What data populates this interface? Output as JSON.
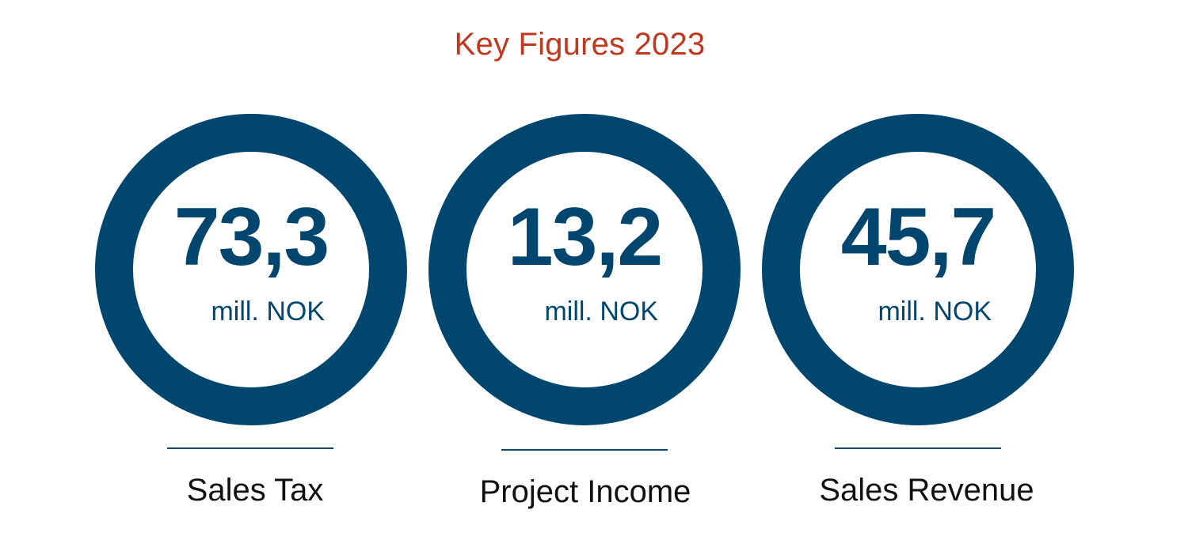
{
  "title": "Key Figures 2023",
  "colors": {
    "title": "#c0381f",
    "ring": "#00466e",
    "value": "#00466e",
    "caption": "#111111"
  },
  "figures": [
    {
      "value": "73,3",
      "unit": "mill. NOK",
      "label": "Sales Tax"
    },
    {
      "value": "13,2",
      "unit": "mill. NOK",
      "label": "Project Income"
    },
    {
      "value": "45,7",
      "unit": "mill. NOK",
      "label": "Sales Revenue"
    }
  ]
}
